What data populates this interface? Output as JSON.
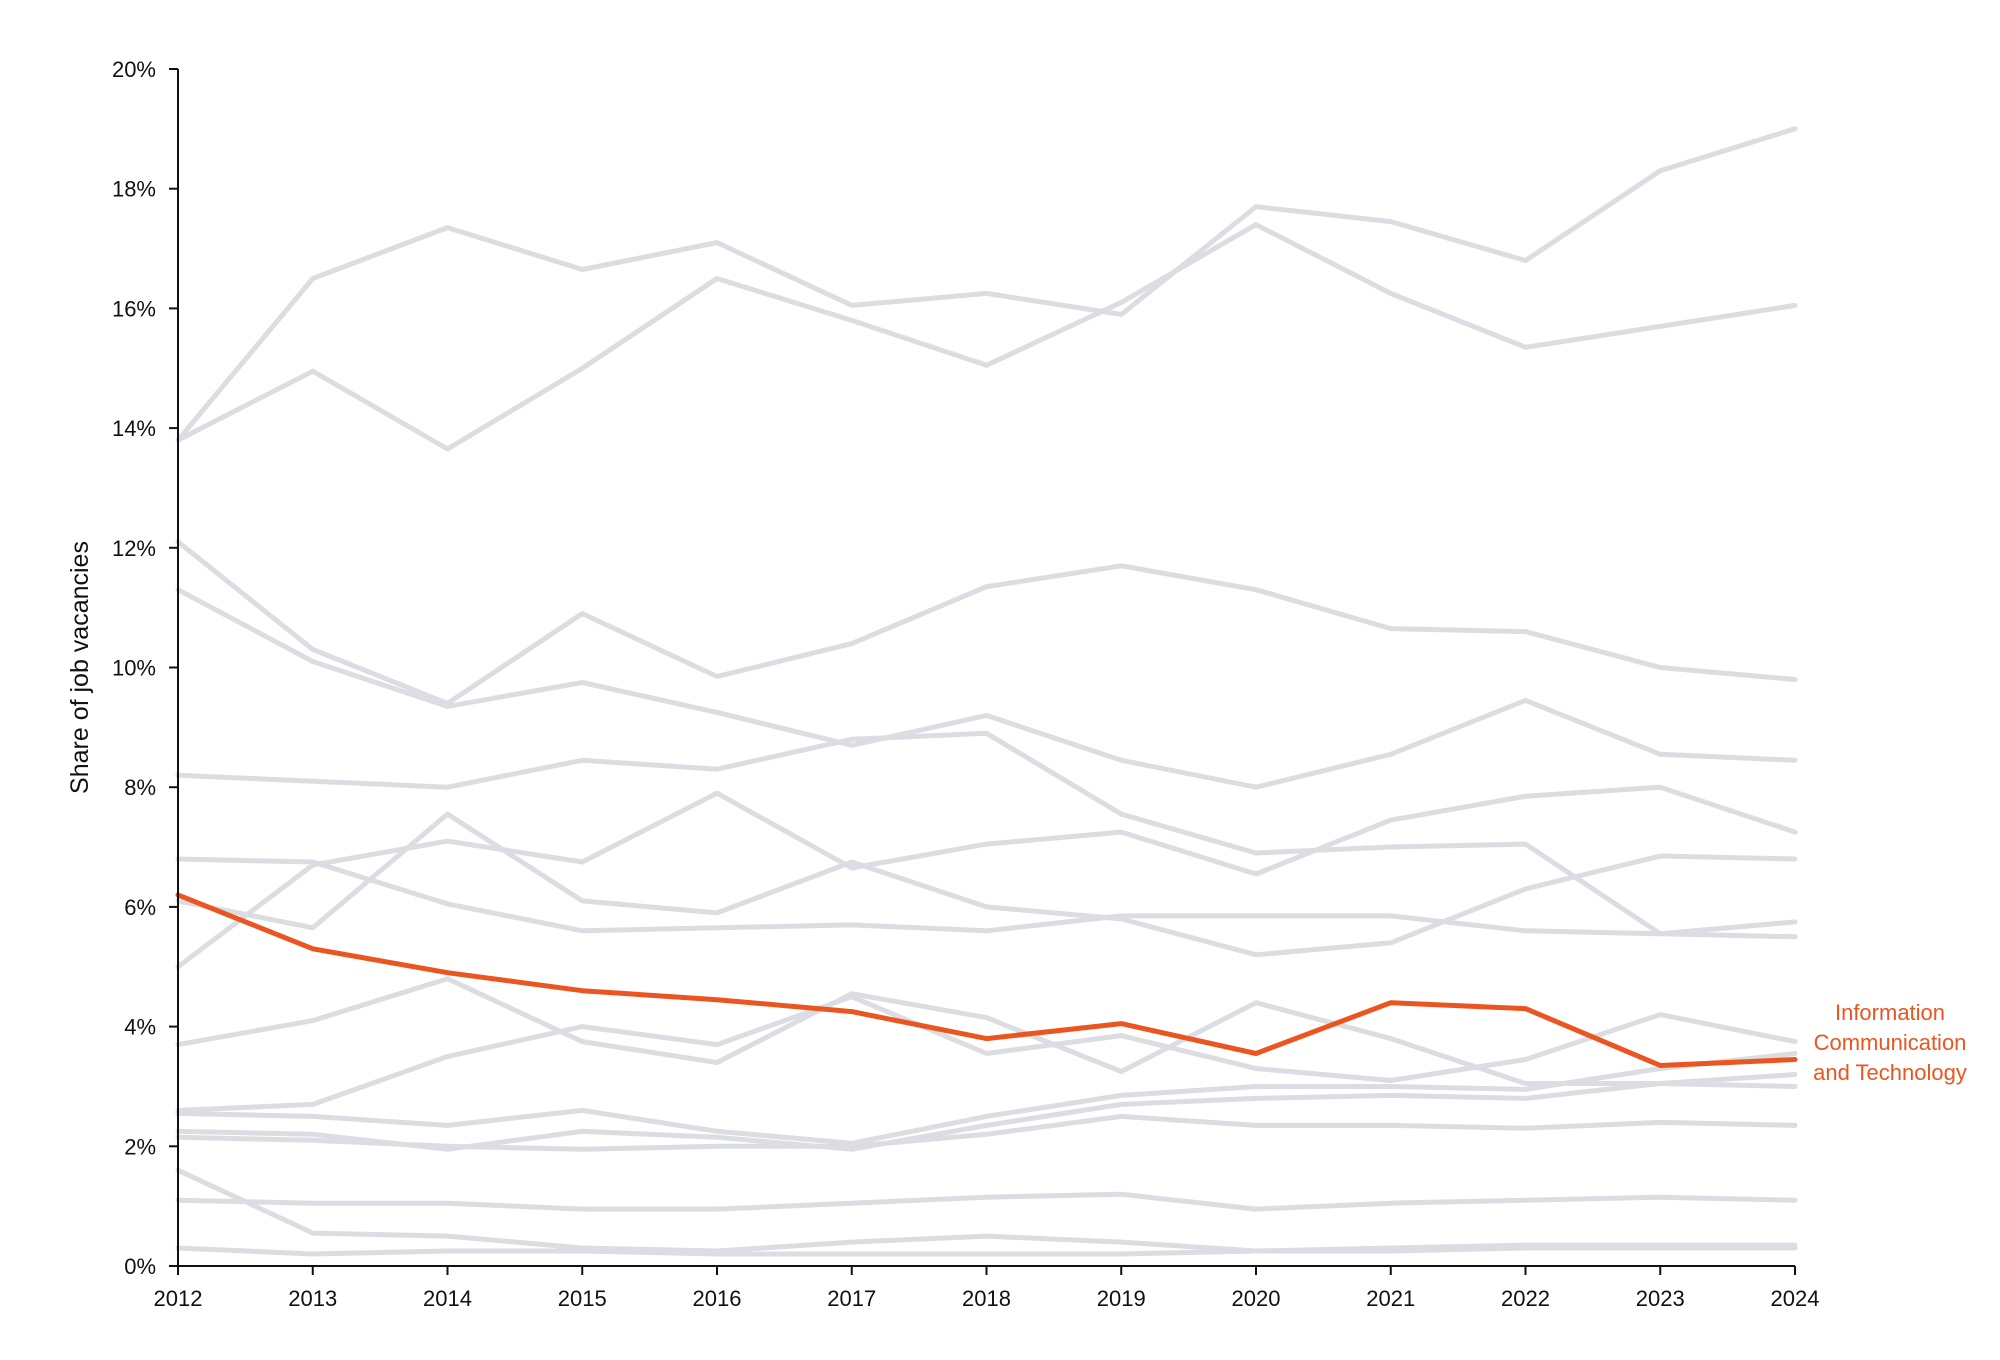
{
  "chart_data": {
    "type": "line",
    "title": "",
    "xlabel": "",
    "ylabel": "Share of job vacancies",
    "x": [
      2012,
      2013,
      2014,
      2015,
      2016,
      2017,
      2018,
      2019,
      2020,
      2021,
      2022,
      2023,
      2024
    ],
    "ylim": [
      0,
      20
    ],
    "y_ticks": [
      "0%",
      "2%",
      "4%",
      "6%",
      "8%",
      "10%",
      "12%",
      "14%",
      "16%",
      "18%",
      "20%"
    ],
    "x_ticks": [
      "2012",
      "2013",
      "2014",
      "2015",
      "2016",
      "2017",
      "2018",
      "2019",
      "2020",
      "2021",
      "2022",
      "2023",
      "2024"
    ],
    "grid": false,
    "background_color": "#dcdde3",
    "highlight_color": "#ea5520",
    "highlight": {
      "name": "Information Communication and Technology",
      "label_lines": [
        "Information",
        "Communication",
        "and Technology"
      ],
      "values": [
        6.2,
        5.3,
        4.9,
        4.6,
        4.45,
        4.25,
        3.8,
        4.05,
        3.55,
        4.4,
        4.3,
        3.35,
        3.45
      ]
    },
    "background_series": [
      {
        "values": [
          13.8,
          16.5,
          17.35,
          16.65,
          17.1,
          16.05,
          16.25,
          15.9,
          17.7,
          17.45,
          16.8,
          18.3,
          19.0
        ]
      },
      {
        "values": [
          13.8,
          14.95,
          13.65,
          15.0,
          16.5,
          15.8,
          15.05,
          16.1,
          17.4,
          16.25,
          15.35,
          15.7,
          16.05
        ]
      },
      {
        "values": [
          12.1,
          10.3,
          9.4,
          10.9,
          9.85,
          10.4,
          11.35,
          11.7,
          11.3,
          10.65,
          10.6,
          10.0,
          9.8
        ]
      },
      {
        "values": [
          11.3,
          10.1,
          9.35,
          9.75,
          9.25,
          8.7,
          9.2,
          8.45,
          8.0,
          8.55,
          9.45,
          8.55,
          8.45
        ]
      },
      {
        "values": [
          8.2,
          8.1,
          8.0,
          8.45,
          8.3,
          8.8,
          8.9,
          7.55,
          6.9,
          7.0,
          7.05,
          5.55,
          5.75
        ]
      },
      {
        "values": [
          6.8,
          6.75,
          6.05,
          5.6,
          5.65,
          5.7,
          5.6,
          5.85,
          5.85,
          5.85,
          5.6,
          5.55,
          5.5
        ]
      },
      {
        "values": [
          6.1,
          5.65,
          7.55,
          6.1,
          5.9,
          6.75,
          6.0,
          5.8,
          5.2,
          5.4,
          6.3,
          6.85,
          6.8
        ]
      },
      {
        "values": [
          5.0,
          6.7,
          7.1,
          6.75,
          7.9,
          6.65,
          7.05,
          7.25,
          6.55,
          7.45,
          7.85,
          8.0,
          7.25
        ]
      },
      {
        "values": [
          3.7,
          4.1,
          4.8,
          3.75,
          3.4,
          4.55,
          4.15,
          3.25,
          4.4,
          3.8,
          3.05,
          3.05,
          3.0
        ]
      },
      {
        "values": [
          2.6,
          2.7,
          3.5,
          4.0,
          3.7,
          4.5,
          3.55,
          3.85,
          3.3,
          3.1,
          3.45,
          4.2,
          3.75
        ]
      },
      {
        "values": [
          2.55,
          2.5,
          2.35,
          2.6,
          2.25,
          2.05,
          2.5,
          2.85,
          3.0,
          3.0,
          2.95,
          3.3,
          3.55
        ]
      },
      {
        "values": [
          2.25,
          2.2,
          1.95,
          2.25,
          2.15,
          1.95,
          2.35,
          2.7,
          2.8,
          2.85,
          2.8,
          3.05,
          3.2
        ]
      },
      {
        "values": [
          2.15,
          2.1,
          2.0,
          1.95,
          2.0,
          2.0,
          2.2,
          2.5,
          2.35,
          2.35,
          2.3,
          2.4,
          2.35
        ]
      },
      {
        "values": [
          1.6,
          0.55,
          0.5,
          0.3,
          0.25,
          0.4,
          0.5,
          0.4,
          0.25,
          0.3,
          0.35,
          0.35,
          0.35
        ]
      },
      {
        "values": [
          1.1,
          1.05,
          1.05,
          0.95,
          0.95,
          1.05,
          1.15,
          1.2,
          0.95,
          1.05,
          1.1,
          1.15,
          1.1
        ]
      },
      {
        "values": [
          0.3,
          0.2,
          0.25,
          0.25,
          0.2,
          0.2,
          0.2,
          0.2,
          0.25,
          0.25,
          0.3,
          0.3,
          0.3
        ]
      }
    ]
  }
}
